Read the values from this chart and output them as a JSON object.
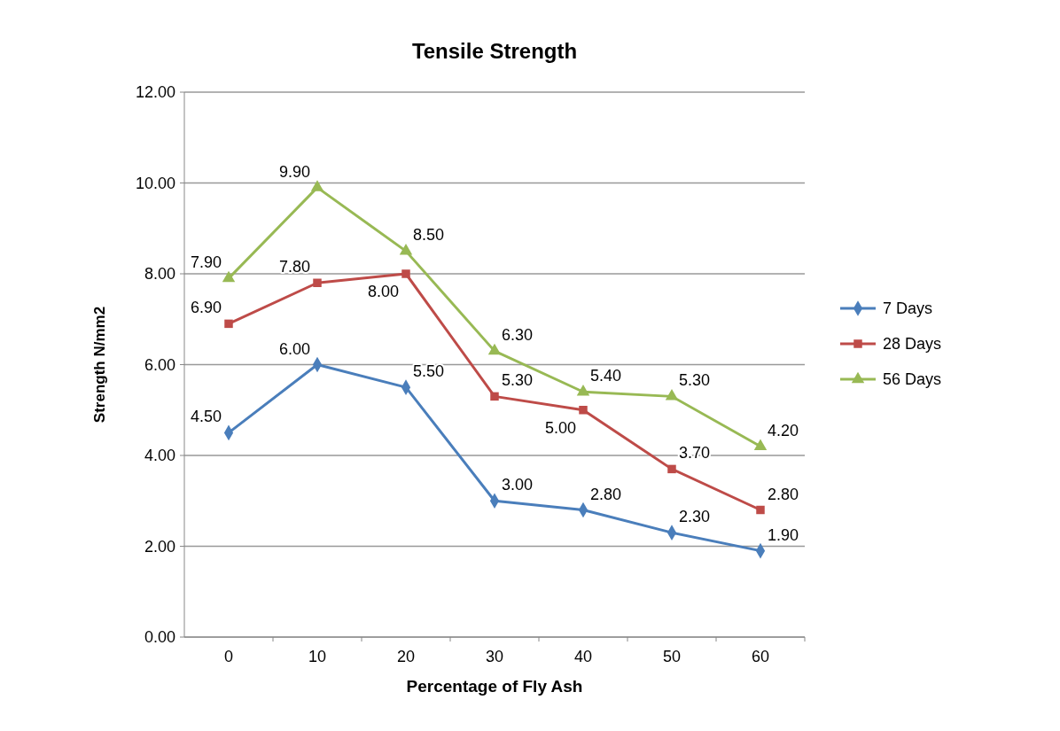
{
  "chart_data": {
    "type": "line",
    "title": "Tensile Strength",
    "xlabel": "Percentage of Fly Ash",
    "ylabel": "Strength N/mm2",
    "categories": [
      "0",
      "10",
      "20",
      "30",
      "40",
      "50",
      "60"
    ],
    "ylim": [
      0,
      12
    ],
    "yticks": [
      {
        "value": 0,
        "label": "0.00"
      },
      {
        "value": 2,
        "label": "2.00"
      },
      {
        "value": 4,
        "label": "4.00"
      },
      {
        "value": 6,
        "label": "6.00"
      },
      {
        "value": 8,
        "label": "8.00"
      },
      {
        "value": 10,
        "label": "10.00"
      },
      {
        "value": 12,
        "label": "12.00"
      }
    ],
    "grid": "y",
    "legend": "right",
    "series": [
      {
        "name": "7 Days",
        "color": "#4a7ebb",
        "marker": "diamond",
        "values": [
          4.5,
          6.0,
          5.5,
          3.0,
          2.8,
          2.3,
          1.9
        ],
        "value_labels": [
          "4.50",
          "6.00",
          "5.50",
          "3.00",
          "2.80",
          "2.30",
          "1.90"
        ]
      },
      {
        "name": "28 Days",
        "color": "#be4b48",
        "marker": "square",
        "values": [
          6.9,
          7.8,
          8.0,
          5.3,
          5.0,
          3.7,
          2.8
        ],
        "value_labels": [
          "6.90",
          "7.80",
          "8.00",
          "5.30",
          "5.00",
          "3.70",
          "2.80"
        ]
      },
      {
        "name": "56 Days",
        "color": "#98b954",
        "marker": "triangle",
        "values": [
          7.9,
          9.9,
          8.5,
          6.3,
          5.4,
          5.3,
          4.2
        ],
        "value_labels": [
          "7.90",
          "9.90",
          "8.50",
          "6.30",
          "5.40",
          "5.30",
          "4.20"
        ]
      }
    ]
  }
}
